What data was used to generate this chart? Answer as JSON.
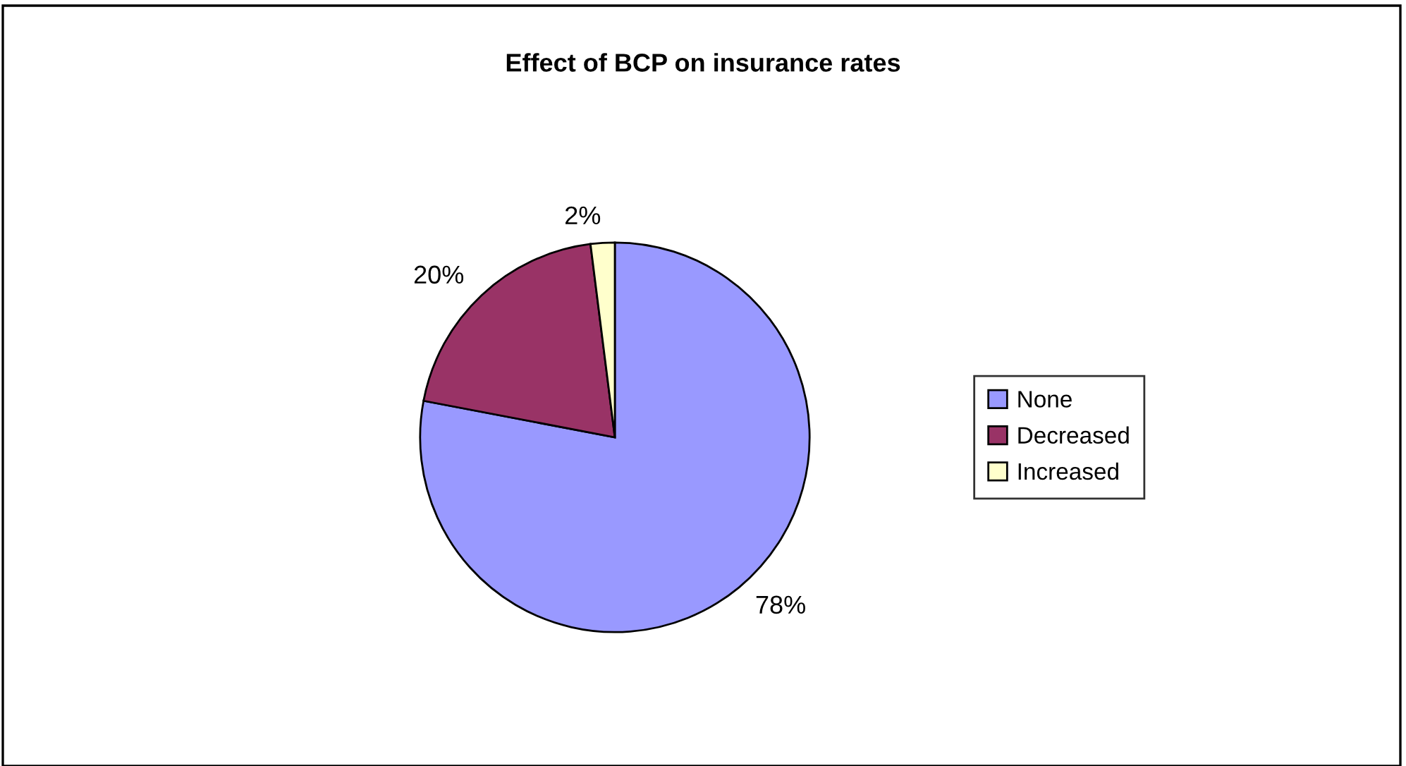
{
  "chart_data": {
    "type": "pie",
    "title": "Effect of BCP on insurance rates",
    "categories": [
      "None",
      "Decreased",
      "Increased"
    ],
    "values": [
      78,
      20,
      2
    ],
    "colors": [
      "#9999ff",
      "#993366",
      "#ffffcc"
    ],
    "value_labels": [
      "78%",
      "20%",
      "2%"
    ],
    "legend": "right"
  }
}
